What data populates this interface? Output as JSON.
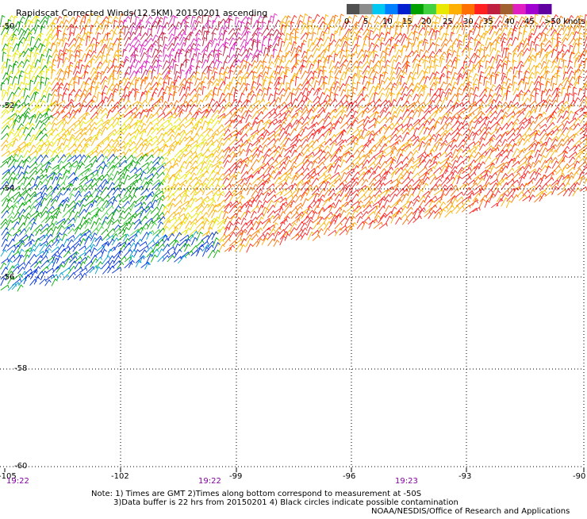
{
  "title": "Rapidscat Corrected Winds(12.5KM) 20150201 ascending",
  "colorbar": {
    "labels": [
      "0",
      "5",
      "10",
      "15",
      "20",
      "25",
      "30",
      "35",
      "40",
      "45",
      ">50 knots"
    ],
    "colors": [
      "#505050",
      "#8c8c8c",
      "#00c8f0",
      "#0080ff",
      "#0020d0",
      "#00a000",
      "#40d040",
      "#e8e800",
      "#ffb000",
      "#ff7000",
      "#ff2020",
      "#c02040",
      "#a06030",
      "#e020c0",
      "#a000d0",
      "#6000a0"
    ]
  },
  "axes": {
    "lat_labels": [
      "-50",
      "-52",
      "-54",
      "-56",
      "-58",
      "-60"
    ],
    "lon_labels": [
      "-105",
      "-102",
      "-99",
      "-96",
      "-93",
      "-90"
    ]
  },
  "times": [
    "19:22",
    "19:22",
    "19:23"
  ],
  "notes": {
    "line1": "Note: 1) Times are GMT 2)Times along bottom correspond to measurement at -50S",
    "line2": "3)Data buffer is 22 hrs from 20150201 4) Black circles indicate possible contamination",
    "credit": "NOAA/NESDIS/Office of Research and Applications"
  },
  "colors": {
    "time_label": "#8000a0",
    "grid": "#000000",
    "text": "#000000"
  }
}
